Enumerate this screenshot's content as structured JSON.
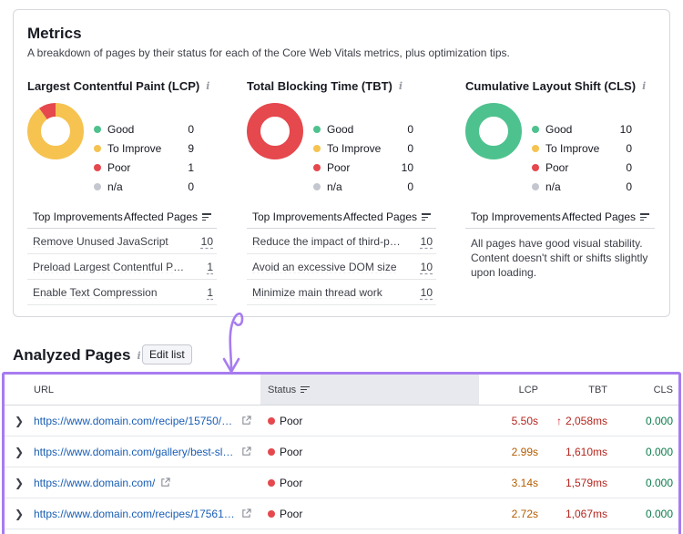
{
  "metrics": {
    "title": "Metrics",
    "subtitle": "A breakdown of pages by their status for each of the Core Web Vitals metrics, plus optimization tips.",
    "colors": {
      "good": "#4ec28e",
      "to_improve": "#f6c350",
      "poor": "#e5484d",
      "na": "#c4c7cf"
    },
    "columns": [
      {
        "heading": "Largest Contentful Paint (LCP)",
        "legend": [
          {
            "label": "Good",
            "value": 0
          },
          {
            "label": "To Improve",
            "value": 9
          },
          {
            "label": "Poor",
            "value": 1
          },
          {
            "label": "n/a",
            "value": 0
          }
        ],
        "improvements_head": "Top Improvements",
        "affected_head": "Affected Pages",
        "improvements": [
          {
            "name": "Remove Unused JavaScript",
            "count": "10"
          },
          {
            "name": "Preload Largest Contentful Paint i...",
            "count": "1"
          },
          {
            "name": "Enable Text Compression",
            "count": "1"
          }
        ]
      },
      {
        "heading": "Total Blocking Time (TBT)",
        "legend": [
          {
            "label": "Good",
            "value": 0
          },
          {
            "label": "To Improve",
            "value": 0
          },
          {
            "label": "Poor",
            "value": 10
          },
          {
            "label": "n/a",
            "value": 0
          }
        ],
        "improvements_head": "Top Improvements",
        "affected_head": "Affected Pages",
        "improvements": [
          {
            "name": "Reduce the impact of third-party...",
            "count": "10"
          },
          {
            "name": "Avoid an excessive DOM size",
            "count": "10"
          },
          {
            "name": "Minimize main thread work",
            "count": "10"
          }
        ]
      },
      {
        "heading": "Cumulative Layout Shift (CLS)",
        "legend": [
          {
            "label": "Good",
            "value": 10
          },
          {
            "label": "To Improve",
            "value": 0
          },
          {
            "label": "Poor",
            "value": 0
          },
          {
            "label": "n/a",
            "value": 0
          }
        ],
        "improvements_head": "Top Improvements",
        "affected_head": "Affected Pages",
        "note": "All pages have good visual stability. Content doesn't shift or shifts slightly upon loading."
      }
    ]
  },
  "analyzed": {
    "title": "Analyzed Pages",
    "edit_label": "Edit list",
    "columns": {
      "url": "URL",
      "status": "Status",
      "lcp": "LCP",
      "tbt": "TBT",
      "cls": "CLS"
    },
    "rows": [
      {
        "url": "https://www.domain.com/recipe/15750/h...",
        "status": "Poor",
        "lcp": "5.50s",
        "lcp_color": "#b3261e",
        "tbt": "2,058ms",
        "tbt_up": true,
        "cls": "0.000"
      },
      {
        "url": "https://www.domain.com/gallery/best-slid...",
        "status": "Poor",
        "lcp": "2.99s",
        "lcp_color": "#b35c00",
        "tbt": "1,610ms",
        "tbt_up": false,
        "cls": "0.000"
      },
      {
        "url": "https://www.domain.com/",
        "status": "Poor",
        "lcp": "3.14s",
        "lcp_color": "#b35c00",
        "tbt": "1,579ms",
        "tbt_up": false,
        "cls": "0.000"
      },
      {
        "url": "https://www.domain.com/recipes/17561/l...",
        "status": "Poor",
        "lcp": "2.72s",
        "lcp_color": "#b35c00",
        "tbt": "1,067ms",
        "tbt_up": false,
        "cls": "0.000"
      }
    ],
    "tbt_color": "#b3261e"
  }
}
